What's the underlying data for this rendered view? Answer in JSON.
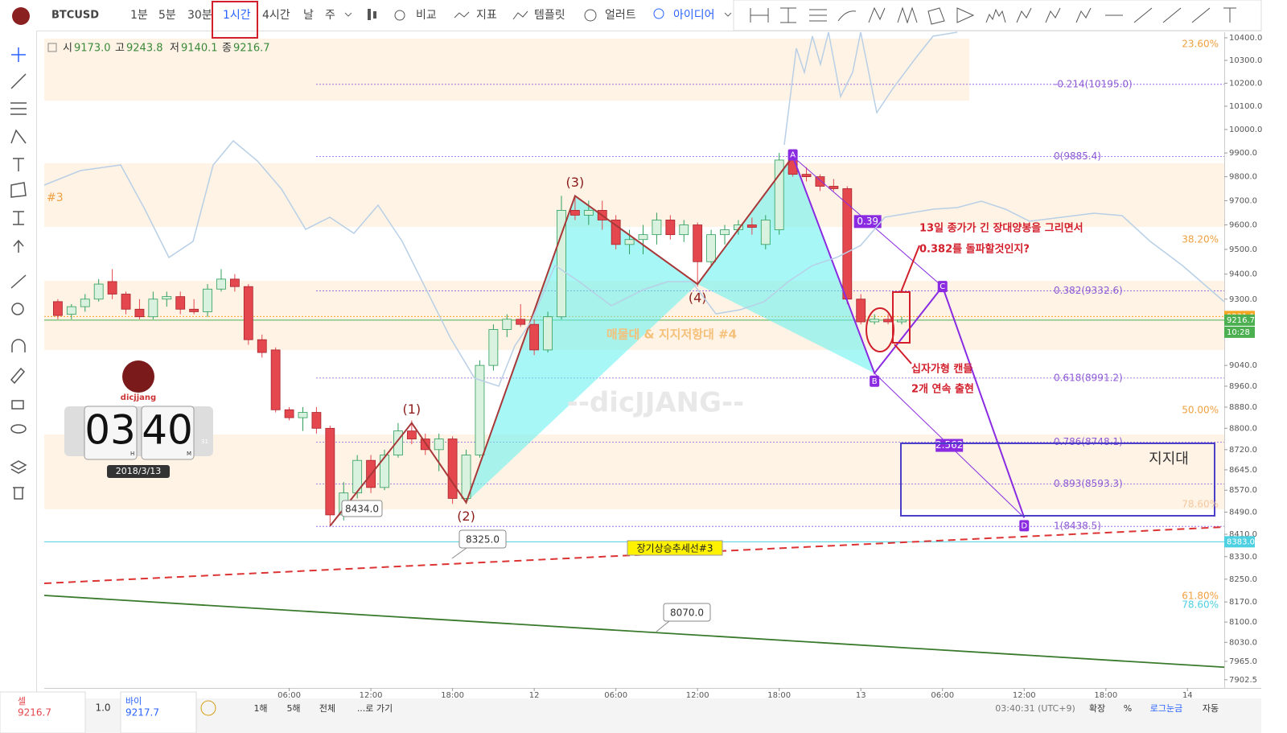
{
  "header": {
    "symbol": "BTCUSD",
    "intervals": [
      "1분",
      "5분",
      "30분",
      "1시간",
      "4시간",
      "날",
      "주"
    ],
    "tools": [
      "비교",
      "지표",
      "템플릿",
      "얼러트",
      "아이디어"
    ]
  },
  "ohlc": [
    {
      "key": "시",
      "value": "9173.0"
    },
    {
      "key": "고",
      "value": "9243.8"
    },
    {
      "key": "저",
      "value": "9140.1"
    },
    {
      "key": "종",
      "value": "9216.7"
    }
  ],
  "chart_data": {
    "type": "candlestick",
    "log_scale": true,
    "up_color": "#2e9e5b",
    "down_color": "#e5474f",
    "ylim": [
      7883,
      10425
    ],
    "yticks": [
      {
        "value": 10400,
        "label": "10400.0"
      },
      {
        "value": 10300,
        "label": "10300.0"
      },
      {
        "value": 10200,
        "label": "10200.0"
      },
      {
        "value": 10100,
        "label": "10100.0"
      },
      {
        "value": 10000,
        "label": "10000.0"
      },
      {
        "value": 9900,
        "label": "9900.0"
      },
      {
        "value": 9800,
        "label": "9800.0"
      },
      {
        "value": 9700,
        "label": "9700.0"
      },
      {
        "value": 9600,
        "label": "9600.0"
      },
      {
        "value": 9500,
        "label": "9500.0"
      },
      {
        "value": 9400,
        "label": "9400.0"
      },
      {
        "value": 9300,
        "label": "9300.0"
      },
      {
        "value": 9040,
        "label": "9040.0"
      },
      {
        "value": 8960,
        "label": "8960.0"
      },
      {
        "value": 8880,
        "label": "8880.0"
      },
      {
        "value": 8800,
        "label": "8800.0"
      },
      {
        "value": 8720,
        "label": "8720.0"
      },
      {
        "value": 8645,
        "label": "8645.0"
      },
      {
        "value": 8570,
        "label": "8570.0"
      },
      {
        "value": 8490,
        "label": "8490.0"
      },
      {
        "value": 8410,
        "label": "8410.0"
      },
      {
        "value": 8330,
        "label": "8330.0"
      },
      {
        "value": 8250,
        "label": "8250.0"
      },
      {
        "value": 8170,
        "label": "8170.0"
      },
      {
        "value": 8100,
        "label": "8100.0"
      },
      {
        "value": 8030,
        "label": "8030.0"
      },
      {
        "value": 7965,
        "label": "7965.0"
      },
      {
        "value": 7902.5,
        "label": "7902.5"
      }
    ],
    "xlim": [
      -12,
      74.7
    ],
    "xticks": [
      {
        "value": 6,
        "label": "06:00"
      },
      {
        "value": 12,
        "label": "12:00"
      },
      {
        "value": 18,
        "label": "18:00"
      },
      {
        "value": 24,
        "label": "12"
      },
      {
        "value": 30,
        "label": "06:00"
      },
      {
        "value": 36,
        "label": "12:00"
      },
      {
        "value": 42,
        "label": "18:00"
      },
      {
        "value": 48,
        "label": "13"
      },
      {
        "value": 54,
        "label": "06:00"
      },
      {
        "value": 60,
        "label": "12:00"
      },
      {
        "value": 66,
        "label": "18:00"
      },
      {
        "value": 72,
        "label": "14"
      }
    ],
    "candles": [
      {
        "x": -11,
        "open": 9290,
        "high": 9300,
        "low": 9220,
        "close": 9235
      },
      {
        "x": -10,
        "open": 9240,
        "high": 9280,
        "low": 9220,
        "close": 9270
      },
      {
        "x": -9,
        "open": 9270,
        "high": 9320,
        "low": 9250,
        "close": 9300
      },
      {
        "x": -8,
        "open": 9300,
        "high": 9380,
        "low": 9290,
        "close": 9360
      },
      {
        "x": -7,
        "open": 9370,
        "high": 9420,
        "low": 9300,
        "close": 9320
      },
      {
        "x": -6,
        "open": 9320,
        "high": 9330,
        "low": 9240,
        "close": 9260
      },
      {
        "x": -5,
        "open": 9260,
        "high": 9300,
        "low": 9220,
        "close": 9230
      },
      {
        "x": -4,
        "open": 9230,
        "high": 9330,
        "low": 9220,
        "close": 9300
      },
      {
        "x": -3,
        "open": 9300,
        "high": 9330,
        "low": 9270,
        "close": 9310
      },
      {
        "x": -2,
        "open": 9310,
        "high": 9330,
        "low": 9240,
        "close": 9260
      },
      {
        "x": -1,
        "open": 9260,
        "high": 9300,
        "low": 9240,
        "close": 9250
      },
      {
        "x": 0,
        "open": 9250,
        "high": 9360,
        "low": 9230,
        "close": 9340
      },
      {
        "x": 1,
        "open": 9340,
        "high": 9420,
        "low": 9330,
        "close": 9380
      },
      {
        "x": 2,
        "open": 9380,
        "high": 9400,
        "low": 9330,
        "close": 9350
      },
      {
        "x": 3,
        "open": 9350,
        "high": 9360,
        "low": 9120,
        "close": 9140
      },
      {
        "x": 4,
        "open": 9140,
        "high": 9160,
        "low": 9070,
        "close": 9090
      },
      {
        "x": 5,
        "open": 9100,
        "high": 9110,
        "low": 8860,
        "close": 8870
      },
      {
        "x": 6,
        "open": 8870,
        "high": 8880,
        "low": 8830,
        "close": 8840
      },
      {
        "x": 7,
        "open": 8840,
        "high": 8880,
        "low": 8790,
        "close": 8860
      },
      {
        "x": 8,
        "open": 8860,
        "high": 8880,
        "low": 8780,
        "close": 8800
      },
      {
        "x": 9,
        "open": 8800,
        "high": 8810,
        "low": 8440,
        "close": 8480
      },
      {
        "x": 10,
        "open": 8480,
        "high": 8600,
        "low": 8460,
        "close": 8560
      },
      {
        "x": 11,
        "open": 8560,
        "high": 8700,
        "low": 8540,
        "close": 8680
      },
      {
        "x": 12,
        "open": 8680,
        "high": 8700,
        "low": 8560,
        "close": 8580
      },
      {
        "x": 13,
        "open": 8580,
        "high": 8720,
        "low": 8570,
        "close": 8700
      },
      {
        "x": 14,
        "open": 8700,
        "high": 8820,
        "low": 8690,
        "close": 8790
      },
      {
        "x": 15,
        "open": 8790,
        "high": 8830,
        "low": 8740,
        "close": 8760
      },
      {
        "x": 16,
        "open": 8760,
        "high": 8780,
        "low": 8700,
        "close": 8720
      },
      {
        "x": 17,
        "open": 8720,
        "high": 8780,
        "low": 8640,
        "close": 8760
      },
      {
        "x": 18,
        "open": 8760,
        "high": 8770,
        "low": 8520,
        "close": 8540
      },
      {
        "x": 19,
        "open": 8540,
        "high": 8720,
        "low": 8520,
        "close": 8700
      },
      {
        "x": 20,
        "open": 8700,
        "high": 9060,
        "low": 8690,
        "close": 9040
      },
      {
        "x": 21,
        "open": 9040,
        "high": 9200,
        "low": 9020,
        "close": 9180
      },
      {
        "x": 22,
        "open": 9180,
        "high": 9240,
        "low": 9150,
        "close": 9220
      },
      {
        "x": 23,
        "open": 9220,
        "high": 9280,
        "low": 9190,
        "close": 9200
      },
      {
        "x": 24,
        "open": 9200,
        "high": 9220,
        "low": 9080,
        "close": 9100
      },
      {
        "x": 25,
        "open": 9100,
        "high": 9250,
        "low": 9090,
        "close": 9230
      },
      {
        "x": 26,
        "open": 9230,
        "high": 9720,
        "low": 9220,
        "close": 9660
      },
      {
        "x": 27,
        "open": 9660,
        "high": 9720,
        "low": 9620,
        "close": 9640
      },
      {
        "x": 28,
        "open": 9640,
        "high": 9700,
        "low": 9600,
        "close": 9660
      },
      {
        "x": 29,
        "open": 9660,
        "high": 9700,
        "low": 9580,
        "close": 9620
      },
      {
        "x": 30,
        "open": 9620,
        "high": 9640,
        "low": 9500,
        "close": 9520
      },
      {
        "x": 31,
        "open": 9520,
        "high": 9580,
        "low": 9480,
        "close": 9540
      },
      {
        "x": 32,
        "open": 9540,
        "high": 9600,
        "low": 9480,
        "close": 9560
      },
      {
        "x": 33,
        "open": 9560,
        "high": 9650,
        "low": 9520,
        "close": 9620
      },
      {
        "x": 34,
        "open": 9620,
        "high": 9640,
        "low": 9540,
        "close": 9560
      },
      {
        "x": 35,
        "open": 9560,
        "high": 9620,
        "low": 9530,
        "close": 9600
      },
      {
        "x": 36,
        "open": 9600,
        "high": 9610,
        "low": 9350,
        "close": 9450
      },
      {
        "x": 37,
        "open": 9450,
        "high": 9580,
        "low": 9430,
        "close": 9560
      },
      {
        "x": 38,
        "open": 9560,
        "high": 9600,
        "low": 9520,
        "close": 9580
      },
      {
        "x": 39,
        "open": 9580,
        "high": 9620,
        "low": 9560,
        "close": 9600
      },
      {
        "x": 40,
        "open": 9600,
        "high": 9630,
        "low": 9560,
        "close": 9590
      },
      {
        "x": 41,
        "open": 9520,
        "high": 9640,
        "low": 9500,
        "close": 9620
      },
      {
        "x": 42,
        "open": 9580,
        "high": 9900,
        "low": 9560,
        "close": 9870
      },
      {
        "x": 43,
        "open": 9870,
        "high": 9890,
        "low": 9800,
        "close": 9810
      },
      {
        "x": 44,
        "open": 9810,
        "high": 9840,
        "low": 9780,
        "close": 9800
      },
      {
        "x": 45,
        "open": 9800,
        "high": 9810,
        "low": 9740,
        "close": 9760
      },
      {
        "x": 46,
        "open": 9760,
        "high": 9790,
        "low": 9740,
        "close": 9750
      },
      {
        "x": 47,
        "open": 9750,
        "high": 9760,
        "low": 9280,
        "close": 9300
      },
      {
        "x": 48,
        "open": 9300,
        "high": 9320,
        "low": 9200,
        "close": 9210
      },
      {
        "x": 49,
        "open": 9210,
        "high": 9240,
        "low": 9200,
        "close": 9220
      },
      {
        "x": 50,
        "open": 9220,
        "high": 9240,
        "low": 9200,
        "close": 9210
      },
      {
        "x": 51,
        "open": 9210,
        "high": 9230,
        "low": 9200,
        "close": 9217
      }
    ],
    "price_lines": [
      {
        "value": 9231.1,
        "label": "9231.1",
        "color": "#f5a623"
      },
      {
        "value": 9216.7,
        "label": "9216.7",
        "color": "#4caf50"
      },
      {
        "value": 8383,
        "label": "8383.0",
        "color": "#4dd0e1"
      }
    ],
    "countdown": "10:28",
    "fib": [
      {
        "value": 10195.0,
        "label": "-0.214(10195.0)"
      },
      {
        "value": 9885.4,
        "label": "0(9885.4)"
      },
      {
        "value": 9332.6,
        "label": "0.382(9332.6)"
      },
      {
        "value": 8991.2,
        "label": "0.618(8991.2)"
      },
      {
        "value": 8748.1,
        "label": "0.786(8748.1)"
      },
      {
        "value": 8593.3,
        "label": "0.893(8593.3)"
      },
      {
        "value": 8438.5,
        "label": "1(8438.5)"
      }
    ],
    "waves": [
      {
        "x": 9,
        "y": 8440
      },
      {
        "x": 15,
        "y": 8820,
        "label": "(1)"
      },
      {
        "x": 19,
        "y": 8525,
        "label": "(2)"
      },
      {
        "x": 27,
        "y": 9720,
        "label": "(3)"
      },
      {
        "x": 36,
        "y": 9360,
        "label": "(4)"
      },
      {
        "x": 43,
        "y": 9885
      }
    ],
    "abcd": [
      {
        "x": 43,
        "y": 9885,
        "label": "A"
      },
      {
        "x": 49,
        "y": 9010,
        "label": "B"
      },
      {
        "x": 54,
        "y": 9350,
        "label": "C"
      },
      {
        "x": 60,
        "y": 8470,
        "label": "D"
      }
    ],
    "ratios": [
      "0.39",
      "2.562"
    ]
  },
  "annotations": {
    "callouts": [
      "8434.0",
      "8325.0",
      "8070.0"
    ],
    "note_1": "13일 종가가 긴 장대양봉을 그리면서",
    "note_2": "0.382를 돌파할것인지?",
    "note_3": "십자가형 캔들",
    "note_4": "2개 연속 출현",
    "support": "지지대",
    "zone_4": "매물대 & 지지저항대 #4",
    "zone_3": "#3",
    "trendline": "장기상승추세선#3",
    "watermark": "--dicJJANG--",
    "fib_pct": [
      "23.60%",
      "38.20%",
      "50.00%",
      "78.60%",
      "61.80%",
      "78.60%"
    ]
  },
  "widget": {
    "logo": "dicjjang",
    "hours": "03",
    "minutes": "40",
    "h": "H",
    "m": "M",
    "sec": "31",
    "date": "2018/3/13"
  },
  "footer": {
    "sell": "셀",
    "sell_price": "9216.7",
    "qty": "1.0",
    "buy": "바이",
    "buy_price": "9217.7",
    "ranges": [
      "1해",
      "5해",
      "전체",
      "...로 가기"
    ],
    "clock": "03:40:31 (UTC+9)",
    "options": [
      "확장",
      "%",
      "로그눈금",
      "자동"
    ]
  }
}
